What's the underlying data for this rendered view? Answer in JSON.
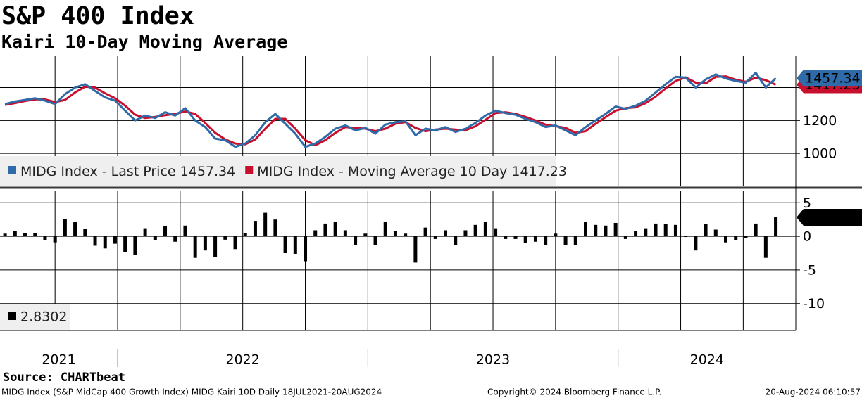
{
  "title": "S&P 400 Index",
  "subtitle": "Kairi 10-Day Moving Average",
  "source": "Source: CHARTbeat",
  "footer": {
    "left": "MIDG Index (S&P MidCap 400 Growth Index) MIDG Kairi 10D  Daily 18JUL2021-20AUG2024",
    "center": "Copyright© 2024 Bloomberg Finance L.P.",
    "right": "20-Aug-2024 06:10:57"
  },
  "chart_data": [
    {
      "type": "line",
      "x": [
        2021.55,
        2021.59,
        2021.63,
        2021.67,
        2021.71,
        2021.75,
        2021.79,
        2021.83,
        2021.87,
        2021.91,
        2021.95,
        2021.99,
        2022.03,
        2022.07,
        2022.11,
        2022.15,
        2022.19,
        2022.23,
        2022.27,
        2022.31,
        2022.35,
        2022.39,
        2022.43,
        2022.47,
        2022.51,
        2022.55,
        2022.59,
        2022.63,
        2022.67,
        2022.71,
        2022.75,
        2022.79,
        2022.83,
        2022.87,
        2022.91,
        2022.95,
        2022.99,
        2023.03,
        2023.07,
        2023.11,
        2023.15,
        2023.19,
        2023.23,
        2023.27,
        2023.31,
        2023.35,
        2023.39,
        2023.43,
        2023.47,
        2023.51,
        2023.55,
        2023.59,
        2023.63,
        2023.67,
        2023.71,
        2023.75,
        2023.79,
        2023.83,
        2023.87,
        2023.91,
        2023.95,
        2023.99,
        2024.03,
        2024.07,
        2024.11,
        2024.15,
        2024.19,
        2024.23,
        2024.27,
        2024.31,
        2024.35,
        2024.39,
        2024.43,
        2024.47,
        2024.51,
        2024.55,
        2024.59,
        2024.63
      ],
      "series": [
        {
          "name": "MIDG Index - Last Price",
          "color": "#2e6ba8",
          "values": [
            1300,
            1315,
            1325,
            1335,
            1320,
            1300,
            1360,
            1400,
            1420,
            1380,
            1340,
            1320,
            1260,
            1200,
            1230,
            1215,
            1250,
            1230,
            1275,
            1200,
            1160,
            1090,
            1080,
            1040,
            1060,
            1110,
            1190,
            1240,
            1180,
            1120,
            1040,
            1060,
            1100,
            1150,
            1170,
            1140,
            1155,
            1120,
            1175,
            1190,
            1195,
            1110,
            1150,
            1140,
            1160,
            1130,
            1150,
            1185,
            1230,
            1260,
            1245,
            1235,
            1210,
            1190,
            1160,
            1170,
            1140,
            1110,
            1160,
            1200,
            1240,
            1285,
            1270,
            1290,
            1320,
            1370,
            1420,
            1465,
            1460,
            1400,
            1450,
            1480,
            1455,
            1440,
            1430,
            1490,
            1400,
            1457.34
          ]
        },
        {
          "name": "MIDG Index - Moving Average 10 Day",
          "color": "#c8102e",
          "values": [
            1295,
            1305,
            1318,
            1328,
            1328,
            1312,
            1325,
            1370,
            1405,
            1400,
            1365,
            1335,
            1290,
            1235,
            1215,
            1222,
            1232,
            1240,
            1255,
            1240,
            1185,
            1125,
            1085,
            1060,
            1055,
            1085,
            1150,
            1210,
            1210,
            1150,
            1080,
            1050,
            1080,
            1125,
            1160,
            1155,
            1150,
            1135,
            1150,
            1180,
            1190,
            1155,
            1135,
            1145,
            1150,
            1145,
            1140,
            1165,
            1205,
            1245,
            1250,
            1240,
            1222,
            1200,
            1175,
            1165,
            1155,
            1125,
            1135,
            1180,
            1220,
            1260,
            1275,
            1280,
            1305,
            1345,
            1395,
            1440,
            1462,
            1430,
            1425,
            1465,
            1468,
            1448,
            1435,
            1460,
            1445,
            1417.23
          ]
        }
      ],
      "xlim": [
        2021.53,
        2024.71
      ],
      "xticks": [
        2021.75,
        2022,
        2022.25,
        2022.5,
        2022.75,
        2023,
        2023.25,
        2023.5,
        2023.75,
        2024,
        2024.25,
        2024.5
      ],
      "year_labels": [
        2021,
        2022,
        2023,
        2024
      ],
      "ylim": [
        800,
        1590
      ],
      "yticks": [
        1000,
        1200,
        1400
      ],
      "grid": true
    },
    {
      "type": "bar",
      "x": [
        2021.55,
        2021.59,
        2021.63,
        2021.67,
        2021.71,
        2021.75,
        2021.79,
        2021.83,
        2021.87,
        2021.91,
        2021.95,
        2021.99,
        2022.03,
        2022.07,
        2022.11,
        2022.15,
        2022.19,
        2022.23,
        2022.27,
        2022.31,
        2022.35,
        2022.39,
        2022.43,
        2022.47,
        2022.51,
        2022.55,
        2022.59,
        2022.63,
        2022.67,
        2022.71,
        2022.75,
        2022.79,
        2022.83,
        2022.87,
        2022.91,
        2022.95,
        2022.99,
        2023.03,
        2023.07,
        2023.11,
        2023.15,
        2023.19,
        2023.23,
        2023.27,
        2023.31,
        2023.35,
        2023.39,
        2023.43,
        2023.47,
        2023.51,
        2023.55,
        2023.59,
        2023.63,
        2023.67,
        2023.71,
        2023.75,
        2023.79,
        2023.83,
        2023.87,
        2023.91,
        2023.95,
        2023.99,
        2024.03,
        2024.07,
        2024.11,
        2024.15,
        2024.19,
        2024.23,
        2024.27,
        2024.31,
        2024.35,
        2024.39,
        2024.43,
        2024.47,
        2024.51,
        2024.55,
        2024.59,
        2024.63
      ],
      "series": [
        {
          "color": "#000000",
          "values": [
            0.4,
            0.8,
            0.5,
            0.5,
            -0.6,
            -0.9,
            2.6,
            2.2,
            1.1,
            -1.4,
            -1.8,
            -1.1,
            -2.3,
            -2.8,
            1.2,
            -0.6,
            1.5,
            -0.8,
            1.6,
            -3.2,
            -2.1,
            -3.1,
            -0.5,
            -1.9,
            0.5,
            2.3,
            3.5,
            2.5,
            -2.5,
            -2.6,
            -3.7,
            0.9,
            1.9,
            2.2,
            0.9,
            -1.3,
            0.4,
            -1.3,
            2.2,
            0.8,
            0.4,
            -3.9,
            1.3,
            -0.4,
            0.9,
            -1.3,
            0.9,
            1.7,
            2.1,
            1.2,
            -0.4,
            -0.4,
            -1.0,
            -0.8,
            -1.3,
            0.4,
            -1.3,
            -1.3,
            2.2,
            1.7,
            1.6,
            2.0,
            -0.4,
            0.8,
            1.2,
            1.9,
            1.8,
            1.7,
            -0.1,
            -2.1,
            1.8,
            1.0,
            -0.9,
            -0.6,
            -0.3,
            1.9,
            -3.2,
            2.8302
          ]
        }
      ],
      "xlim": [
        2021.53,
        2024.71
      ],
      "xticks": [
        2021.75,
        2022,
        2022.25,
        2022.5,
        2022.75,
        2023,
        2023.25,
        2023.5,
        2023.75,
        2024,
        2024.25,
        2024.5
      ],
      "ylim": [
        -14,
        6.7
      ],
      "yticks": [
        5,
        0,
        -5,
        -10
      ],
      "grid": true
    }
  ]
}
